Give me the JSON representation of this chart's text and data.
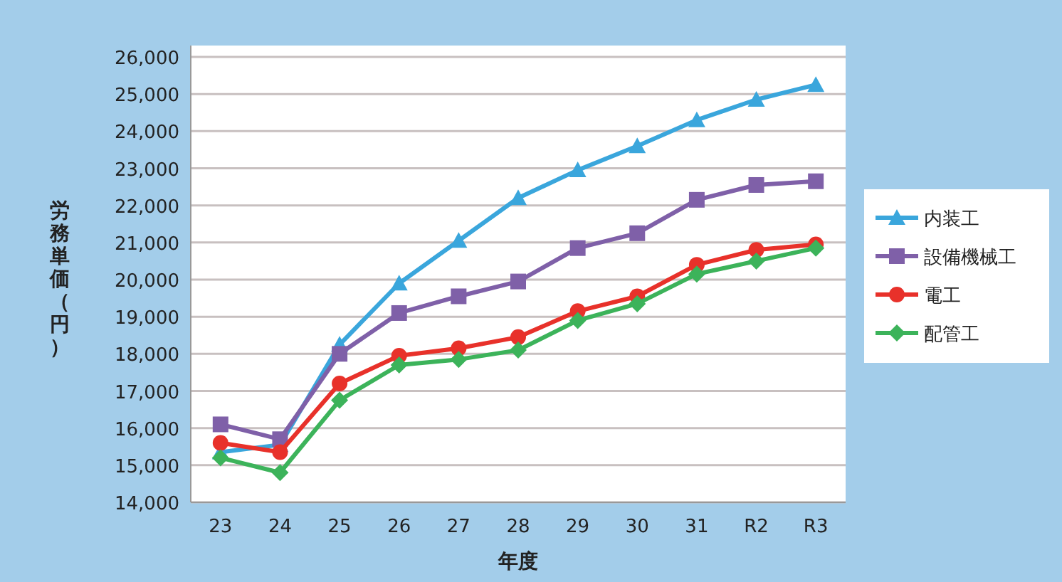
{
  "chart_data": {
    "type": "line",
    "xlabel": "年度",
    "ylabel": "労務単価（円）",
    "categories": [
      "23",
      "24",
      "25",
      "26",
      "27",
      "28",
      "29",
      "30",
      "31",
      "R2",
      "R3"
    ],
    "ylim": [
      14000,
      26000
    ],
    "yticks": [
      {
        "value": 14000,
        "label": "14,000"
      },
      {
        "value": 15000,
        "label": "15,000"
      },
      {
        "value": 16000,
        "label": "16,000"
      },
      {
        "value": 17000,
        "label": "17,000"
      },
      {
        "value": 18000,
        "label": "18,000"
      },
      {
        "value": 19000,
        "label": "19,000"
      },
      {
        "value": 20000,
        "label": "20,000"
      },
      {
        "value": 21000,
        "label": "21,000"
      },
      {
        "value": 22000,
        "label": "22,000"
      },
      {
        "value": 23000,
        "label": "23,000"
      },
      {
        "value": 24000,
        "label": "24,000"
      },
      {
        "value": 25000,
        "label": "25,000"
      },
      {
        "value": 26000,
        "label": "26,000"
      }
    ],
    "grid": "y",
    "legend": "right",
    "line_style": "solid",
    "series": [
      {
        "name": "内装工",
        "color": "#3aa6dc",
        "marker": "triangle",
        "values": [
          15350,
          15550,
          18250,
          19900,
          21050,
          22200,
          22950,
          23600,
          24300,
          24850,
          25250
        ]
      },
      {
        "name": "設備機械工",
        "color": "#7f60a8",
        "marker": "square",
        "values": [
          16100,
          15700,
          18000,
          19100,
          19550,
          19950,
          20850,
          21250,
          22150,
          22550,
          22650
        ]
      },
      {
        "name": "電工",
        "color": "#e8312a",
        "marker": "circle",
        "values": [
          15600,
          15350,
          17200,
          17950,
          18150,
          18450,
          19150,
          19550,
          20400,
          20800,
          20950
        ]
      },
      {
        "name": "配管工",
        "color": "#3cb35a",
        "marker": "diamond",
        "values": [
          15200,
          14800,
          16750,
          17700,
          17850,
          18100,
          18900,
          19350,
          20150,
          20500,
          20850
        ]
      }
    ]
  }
}
